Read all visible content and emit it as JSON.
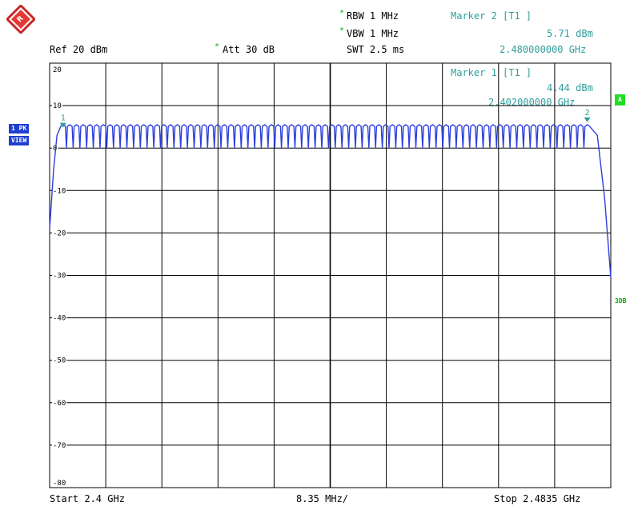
{
  "header": {
    "ref": "Ref  20 dBm",
    "att_star": "*",
    "att": "Att  30 dB",
    "rbw_star": "*",
    "rbw": "RBW 1 MHz",
    "vbw_star": "*",
    "vbw": "VBW 1 MHz",
    "swt": "SWT 2.5 ms"
  },
  "markers": {
    "m2_title": "Marker 2 [T1 ]",
    "m2_level": "5.71 dBm",
    "m2_freq": "2.480000000 GHz",
    "m1_title": "Marker 1 [T1 ]",
    "m1_level": "4.44 dBm",
    "m1_freq": "2.402000000 GHz",
    "m1_label": "1",
    "m2_label": "2"
  },
  "side": {
    "trace_mode": "1 PK",
    "trace_view": "VIEW",
    "trace_flag": "A",
    "limit_label": "3DB"
  },
  "footer": {
    "start": "Start 2.4 GHz",
    "span": "8.35 MHz/",
    "stop": "Stop 2.4835 GHz"
  },
  "colors": {
    "trace": "#2c3fdc",
    "marker": "#2f9e9e",
    "grid": "#000000",
    "badge_blue": "#1f3fd0",
    "badge_green": "#22dd22",
    "label_green": "#00b000"
  },
  "chart_data": {
    "type": "line",
    "title": "",
    "xlabel": "",
    "ylabel": "",
    "xlim": [
      2.4,
      2.4835
    ],
    "ylim": [
      -80,
      20
    ],
    "y_ticks": [
      20,
      10,
      0,
      -10,
      -20,
      -30,
      -40,
      -50,
      -60,
      -70,
      -80
    ],
    "y_tick_labels": [
      "20",
      "10",
      "0",
      "-10",
      "-20",
      "-30",
      "-40",
      "-50",
      "-60",
      "-70",
      "-80"
    ],
    "grid": true,
    "hops": {
      "first_channel_ghz": 2.402,
      "last_channel_ghz": 2.48,
      "channel_spacing_mhz": 1,
      "peak_dbm": 5.5,
      "valley_dbm": 0.0
    },
    "edges": [
      {
        "x": 2.4,
        "y": -19.0
      },
      {
        "x": 2.4006,
        "y": -5.0
      },
      {
        "x": 2.4011,
        "y": 3.0
      },
      {
        "x": 2.4815,
        "y": 3.0
      },
      {
        "x": 2.4826,
        "y": -12.0
      },
      {
        "x": 2.4835,
        "y": -30.5
      }
    ],
    "markers": [
      {
        "label": "1",
        "x": 2.402,
        "y": 4.44
      },
      {
        "label": "2",
        "x": 2.48,
        "y": 5.71
      }
    ]
  }
}
